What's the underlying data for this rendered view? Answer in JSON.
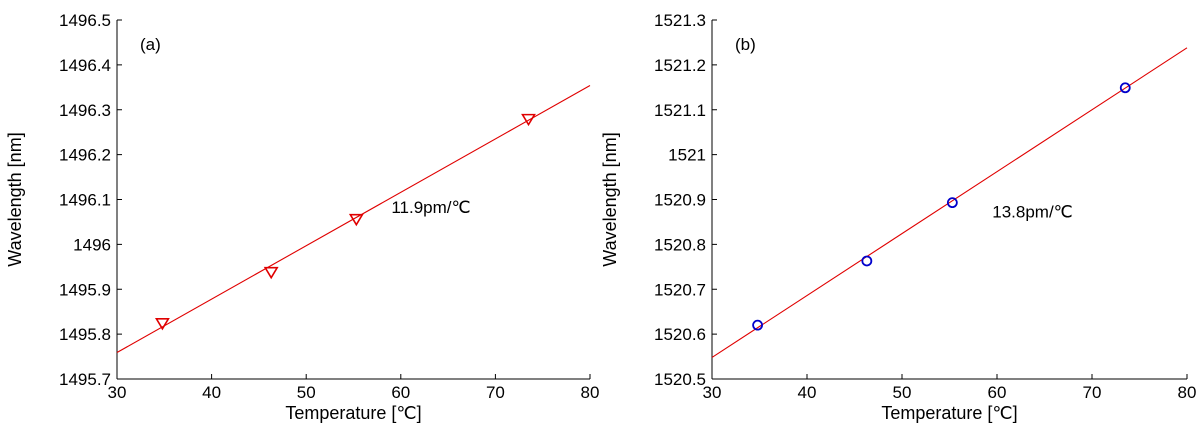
{
  "chart_data": [
    {
      "type": "scatter",
      "panel_label": "(a)",
      "xlabel": "Temperature [℃]",
      "ylabel": "Wavelength [nm]",
      "xlim": [
        30,
        80
      ],
      "ylim": [
        1495.7,
        1496.5
      ],
      "xticks": [
        "30",
        "40",
        "50",
        "60",
        "70",
        "80"
      ],
      "yticks": [
        "1495.7",
        "1495.8",
        "1495.9",
        "1496",
        "1496.1",
        "1496.2",
        "1496.3",
        "1496.4",
        "1496.5"
      ],
      "annotation": "11.9pm/℃",
      "annotation_at": [
        59.0,
        1496.07
      ],
      "series": [
        {
          "marker": "triangle-down",
          "color": "#e00000",
          "x": [
            34.8,
            46.3,
            55.3,
            73.5
          ],
          "y": [
            1495.823,
            1495.937,
            1496.055,
            1496.278
          ]
        }
      ],
      "fit_line": {
        "color": "#e00000",
        "x": [
          30,
          80
        ],
        "y": [
          1495.759,
          1496.354
        ]
      },
      "grid": false
    },
    {
      "type": "scatter",
      "panel_label": "(b)",
      "xlabel": "Temperature [℃]",
      "ylabel": "Wavelength [nm]",
      "xlim": [
        30,
        80
      ],
      "ylim": [
        1520.5,
        1521.3
      ],
      "xticks": [
        "30",
        "40",
        "50",
        "60",
        "70",
        "80"
      ],
      "yticks": [
        "1520.5",
        "1520.6",
        "1520.7",
        "1520.8",
        "1520.9",
        "1521",
        "1521.1",
        "1521.2",
        "1521.3"
      ],
      "annotation": "13.8pm/℃",
      "annotation_at": [
        59.5,
        1520.86
      ],
      "series": [
        {
          "marker": "circle",
          "color": "#0000cc",
          "x": [
            34.8,
            46.3,
            55.3,
            73.5
          ],
          "y": [
            1520.62,
            1520.763,
            1520.893,
            1521.149
          ]
        }
      ],
      "fit_line": {
        "color": "#e00000",
        "x": [
          30,
          80
        ],
        "y": [
          1520.548,
          1521.238
        ]
      },
      "grid": false
    }
  ]
}
